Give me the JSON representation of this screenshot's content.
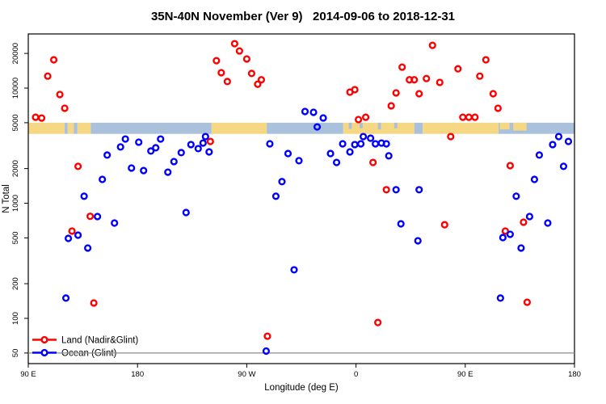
{
  "chart_data": {
    "type": "scatter",
    "title": "35N-40N November (Ver 9)   2014-09-06 to 2018-12-31",
    "xlabel": "Longitude (deg E)",
    "ylabel": "N Total",
    "x_axis": {
      "min": 90,
      "max": 540,
      "ticks": [
        {
          "value": 90,
          "label": "90 E"
        },
        {
          "value": 180,
          "label": "180"
        },
        {
          "value": 270,
          "label": "90 W"
        },
        {
          "value": 360,
          "label": "0"
        },
        {
          "value": 450,
          "label": "90 E"
        },
        {
          "value": 540,
          "label": "180"
        }
      ]
    },
    "y_axis": {
      "scale": "log",
      "min": 40,
      "max": 30000,
      "ticks": [
        {
          "value": 50,
          "label": "50"
        },
        {
          "value": 100,
          "label": "100"
        },
        {
          "value": 200,
          "label": "200"
        },
        {
          "value": 500,
          "label": "500"
        },
        {
          "value": 1000,
          "label": "1000"
        },
        {
          "value": 2000,
          "label": "2000"
        },
        {
          "value": 5000,
          "label": "5000"
        },
        {
          "value": 10000,
          "label": "10000"
        },
        {
          "value": 20000,
          "label": "20000"
        }
      ]
    },
    "reference_line": {
      "y": 50,
      "color": "#8C8C8C"
    },
    "map_strip": {
      "n_top": 5000,
      "n_bottom": 4000,
      "land_color": "#F6D784",
      "ocean_color": "#A9C1DB",
      "segments": [
        {
          "from": 90,
          "to": 120,
          "type": "land"
        },
        {
          "from": 120,
          "to": 122.5,
          "type": "ocean"
        },
        {
          "from": 122.5,
          "to": 127.5,
          "type": "land"
        },
        {
          "from": 127.5,
          "to": 130.5,
          "type": "ocean"
        },
        {
          "from": 130.5,
          "to": 141.5,
          "type": "land"
        },
        {
          "from": 141.5,
          "to": 241,
          "type": "ocean"
        },
        {
          "from": 241,
          "to": 286.5,
          "type": "land"
        },
        {
          "from": 286.5,
          "to": 349.5,
          "type": "ocean"
        },
        {
          "from": 349.5,
          "to": 408,
          "type": "land"
        },
        {
          "from": 354,
          "to": 356.5,
          "type": "ocean",
          "frac": 0.55
        },
        {
          "from": 363,
          "to": 365.5,
          "type": "ocean",
          "frac": 0.5
        },
        {
          "from": 378,
          "to": 380.5,
          "type": "ocean",
          "frac": 0.6
        },
        {
          "from": 391.5,
          "to": 394,
          "type": "ocean",
          "frac": 0.5
        },
        {
          "from": 408,
          "to": 415,
          "type": "ocean"
        },
        {
          "from": 415,
          "to": 477.5,
          "type": "land"
        },
        {
          "from": 477.5,
          "to": 540,
          "type": "ocean"
        },
        {
          "from": 478.5,
          "to": 486.5,
          "type": "land",
          "frac": 0.6
        },
        {
          "from": 489.5,
          "to": 500.5,
          "type": "land",
          "frac": 0.7
        }
      ]
    },
    "legend": {
      "items": [
        {
          "key": "land",
          "label": "Land (Nadir&Glint)",
          "color": "#FF0000"
        },
        {
          "key": "ocean",
          "label": "Ocean (Glint)",
          "color": "#0000FF"
        }
      ]
    },
    "series": [
      {
        "key": "land",
        "name": "Land (Nadir&Glint)",
        "color": "#FF0000",
        "points": [
          [
            96,
            5580
          ],
          [
            101,
            5490
          ],
          [
            106,
            12700
          ],
          [
            111,
            17600
          ],
          [
            116,
            8790
          ],
          [
            120,
            6680
          ],
          [
            126,
            573
          ],
          [
            131,
            2090
          ],
          [
            141,
            770
          ],
          [
            144,
            136
          ],
          [
            240,
            3440
          ],
          [
            245,
            17300
          ],
          [
            249,
            13600
          ],
          [
            254,
            11400
          ],
          [
            260,
            24300
          ],
          [
            264,
            21000
          ],
          [
            270,
            17900
          ],
          [
            274,
            13400
          ],
          [
            279,
            10800
          ],
          [
            282,
            11800
          ],
          [
            287,
            70
          ],
          [
            355,
            9220
          ],
          [
            359,
            9690
          ],
          [
            362,
            5330
          ],
          [
            368,
            5580
          ],
          [
            374,
            2260
          ],
          [
            378,
            92
          ],
          [
            385,
            1310
          ],
          [
            389,
            7010
          ],
          [
            393,
            9080
          ],
          [
            398,
            15200
          ],
          [
            404,
            11800
          ],
          [
            408,
            11800
          ],
          [
            412,
            8930
          ],
          [
            418,
            12100
          ],
          [
            423,
            23500
          ],
          [
            429,
            11200
          ],
          [
            433,
            650
          ],
          [
            438,
            3790
          ],
          [
            444,
            14700
          ],
          [
            448,
            5580
          ],
          [
            453,
            5580
          ],
          [
            458,
            5580
          ],
          [
            462,
            12700
          ],
          [
            467,
            17600
          ],
          [
            473,
            8930
          ],
          [
            477,
            6680
          ],
          [
            483,
            573
          ],
          [
            487,
            2120
          ],
          [
            498,
            684
          ],
          [
            501,
            138
          ]
        ]
      },
      {
        "key": "ocean",
        "name": "Ocean (Glint)",
        "color": "#0000FF",
        "points": [
          [
            121,
            150
          ],
          [
            123,
            495
          ],
          [
            131,
            528
          ],
          [
            136,
            1150
          ],
          [
            139,
            408
          ],
          [
            147,
            766
          ],
          [
            151,
            1610
          ],
          [
            155,
            2620
          ],
          [
            161,
            673
          ],
          [
            166,
            3080
          ],
          [
            170,
            3610
          ],
          [
            175,
            2020
          ],
          [
            181,
            3390
          ],
          [
            185,
            1920
          ],
          [
            191,
            2840
          ],
          [
            195,
            3030
          ],
          [
            199,
            3610
          ],
          [
            205,
            1860
          ],
          [
            210,
            2300
          ],
          [
            216,
            2750
          ],
          [
            220,
            830
          ],
          [
            224,
            3230
          ],
          [
            230,
            2980
          ],
          [
            234,
            3330
          ],
          [
            236,
            3790
          ],
          [
            239,
            2790
          ],
          [
            286,
            52
          ],
          [
            289,
            3280
          ],
          [
            294,
            1150
          ],
          [
            299,
            1540
          ],
          [
            304,
            2700
          ],
          [
            309,
            264
          ],
          [
            313,
            2340
          ],
          [
            318,
            6260
          ],
          [
            325,
            6160
          ],
          [
            328,
            4600
          ],
          [
            333,
            5500
          ],
          [
            339,
            2700
          ],
          [
            344,
            2260
          ],
          [
            349,
            3280
          ],
          [
            355,
            2790
          ],
          [
            359,
            3230
          ],
          [
            364,
            3280
          ],
          [
            366,
            3790
          ],
          [
            372,
            3670
          ],
          [
            376,
            3280
          ],
          [
            381,
            3330
          ],
          [
            385,
            3280
          ],
          [
            387,
            2580
          ],
          [
            393,
            1310
          ],
          [
            397,
            662
          ],
          [
            411,
            472
          ],
          [
            412,
            1310
          ],
          [
            479,
            150
          ],
          [
            481,
            503
          ],
          [
            487,
            537
          ],
          [
            492,
            1150
          ],
          [
            496,
            408
          ],
          [
            503,
            766
          ],
          [
            507,
            1610
          ],
          [
            511,
            2620
          ],
          [
            518,
            673
          ],
          [
            522,
            3230
          ],
          [
            527,
            3790
          ],
          [
            531,
            2090
          ],
          [
            535,
            3440
          ]
        ]
      }
    ]
  }
}
